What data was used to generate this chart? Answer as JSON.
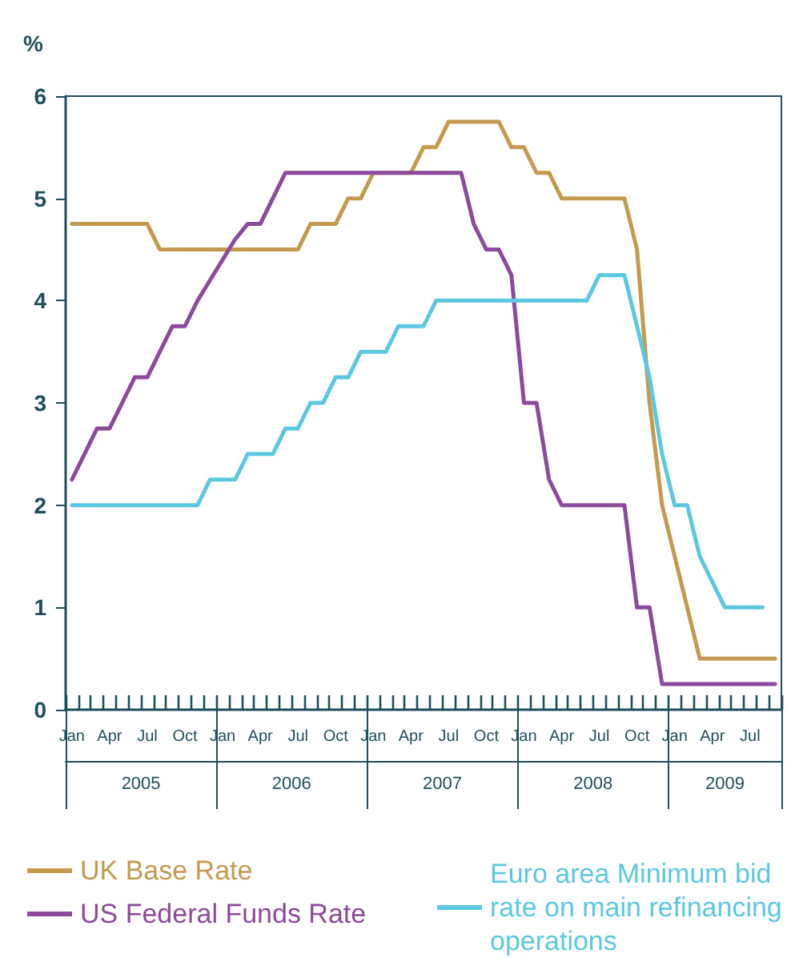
{
  "chart_data": {
    "type": "line",
    "ylabel": "%",
    "categories": [
      "Jan",
      null,
      null,
      "Apr",
      null,
      null,
      "Jul",
      null,
      null,
      "Oct",
      null,
      null,
      "Jan",
      null,
      null,
      "Apr",
      null,
      null,
      "Jul",
      null,
      null,
      "Oct",
      null,
      null,
      "Jan",
      null,
      null,
      "Apr",
      null,
      null,
      "Jul",
      null,
      null,
      "Oct",
      null,
      null,
      "Jan",
      null,
      null,
      "Apr",
      null,
      null,
      "Jul",
      null,
      null,
      "Oct",
      null,
      null,
      "Jan",
      null,
      null,
      "Apr",
      null,
      null,
      "Jul",
      null,
      null
    ],
    "series": [
      {
        "name": "UK Base Rate",
        "color": "#c49a4f",
        "values": [
          4.75,
          4.75,
          4.75,
          4.75,
          4.75,
          4.75,
          4.75,
          4.5,
          4.5,
          4.5,
          4.5,
          4.5,
          4.5,
          4.5,
          4.5,
          4.5,
          4.5,
          4.5,
          4.5,
          4.75,
          4.75,
          4.75,
          5.0,
          5.0,
          5.25,
          5.25,
          5.25,
          5.25,
          5.5,
          5.5,
          5.75,
          5.75,
          5.75,
          5.75,
          5.75,
          5.5,
          5.5,
          5.25,
          5.25,
          5.0,
          5.0,
          5.0,
          5.0,
          5.0,
          5.0,
          4.5,
          3.0,
          2.0,
          1.5,
          1.0,
          0.5,
          0.5,
          0.5,
          0.5,
          0.5,
          0.5,
          0.5
        ]
      },
      {
        "name": "US Federal Funds Rate",
        "color": "#8b4a9c",
        "values": [
          2.25,
          2.5,
          2.75,
          2.75,
          3.0,
          3.25,
          3.25,
          3.5,
          3.75,
          3.75,
          4.0,
          4.2,
          4.4,
          4.6,
          4.75,
          4.75,
          5.0,
          5.25,
          5.25,
          5.25,
          5.25,
          5.25,
          5.25,
          5.25,
          5.25,
          5.25,
          5.25,
          5.25,
          5.25,
          5.25,
          5.25,
          5.25,
          4.75,
          4.5,
          4.5,
          4.25,
          3.0,
          3.0,
          2.25,
          2.0,
          2.0,
          2.0,
          2.0,
          2.0,
          2.0,
          1.0,
          1.0,
          0.25,
          0.25,
          0.25,
          0.25,
          0.25,
          0.25,
          0.25,
          0.25,
          0.25,
          0.25
        ]
      },
      {
        "name": "Euro area Minimum bid rate on main refinancing operations",
        "color": "#5bc8e0",
        "values": [
          2.0,
          2.0,
          2.0,
          2.0,
          2.0,
          2.0,
          2.0,
          2.0,
          2.0,
          2.0,
          2.0,
          2.25,
          2.25,
          2.25,
          2.5,
          2.5,
          2.5,
          2.75,
          2.75,
          3.0,
          3.0,
          3.25,
          3.25,
          3.5,
          3.5,
          3.5,
          3.75,
          3.75,
          3.75,
          4.0,
          4.0,
          4.0,
          4.0,
          4.0,
          4.0,
          4.0,
          4.0,
          4.0,
          4.0,
          4.0,
          4.0,
          4.0,
          4.25,
          4.25,
          4.25,
          3.75,
          3.25,
          2.5,
          2.0,
          2.0,
          1.5,
          1.25,
          1.0,
          1.0,
          1.0,
          1.0,
          null
        ]
      }
    ],
    "ylim": [
      0,
      6
    ],
    "yticks": [
      0,
      1,
      2,
      3,
      4,
      5,
      6
    ],
    "legend": "bottom",
    "marker": "none",
    "line_style": "solid",
    "grid": false,
    "annotations": [
      "2005",
      "2006",
      "2007",
      "2008",
      "2009"
    ]
  }
}
